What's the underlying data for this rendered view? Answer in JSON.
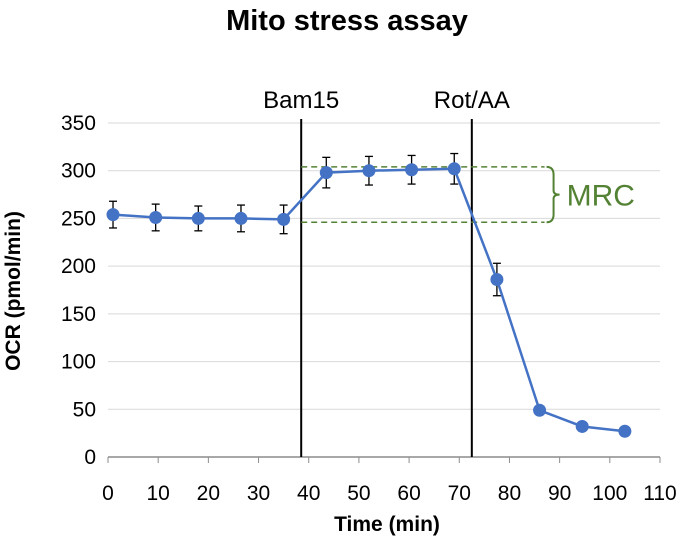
{
  "chart_data": {
    "type": "line",
    "title": "Mito stress assay",
    "xlabel": "Time (min)",
    "ylabel": "OCR (pmol/min)",
    "xlim": [
      0,
      110
    ],
    "ylim": [
      0,
      350
    ],
    "xticks": [
      0,
      10,
      20,
      30,
      40,
      50,
      60,
      70,
      80,
      90,
      100,
      110
    ],
    "yticks": [
      0,
      50,
      100,
      150,
      200,
      250,
      300,
      350
    ],
    "grid": true,
    "series": [
      {
        "name": "OCR",
        "color": "#4472C4",
        "x": [
          1,
          9.5,
          18,
          26.5,
          35,
          43.5,
          52,
          60.5,
          69,
          77.5,
          86,
          94.5,
          103
        ],
        "y": [
          254,
          251,
          250,
          250,
          249,
          298,
          300,
          301,
          302,
          186,
          49,
          32,
          27
        ],
        "error": [
          14,
          14,
          13,
          14,
          15,
          16,
          15,
          15,
          16,
          17,
          0,
          0,
          0
        ]
      }
    ],
    "markers": [
      {
        "label": "Bam15",
        "x": 38.5
      },
      {
        "label": "Rot/AA",
        "x": 72.5
      }
    ],
    "annotation": {
      "label": "MRC",
      "color": "#548235",
      "y_low": 246,
      "y_high": 304,
      "x_start": 38.5,
      "x_end": 87
    }
  }
}
